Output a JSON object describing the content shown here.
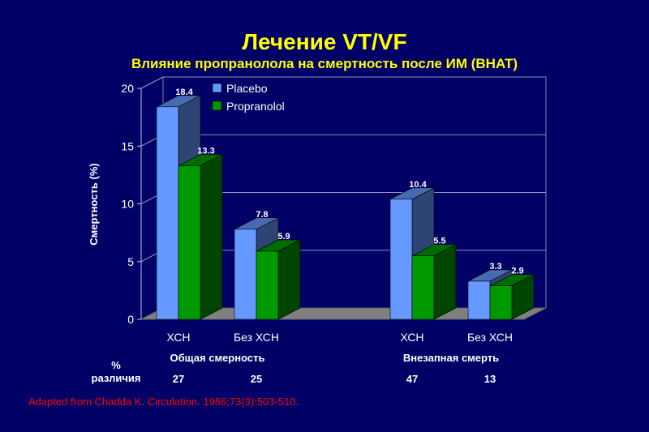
{
  "title": "Лечение  VT/VF",
  "subtitle": "Влияние пропранолола на смертность после ИМ  (BHAT)",
  "source": "Adapted from Chadda K.  Circulation.  1986;73(3):503-510.",
  "colors": {
    "placebo": "#6699ff",
    "propranolol": "#009900",
    "text": "#ffffff",
    "title": "#ffff00",
    "source": "#ff0000"
  },
  "chart_data": {
    "type": "bar",
    "ylabel": "Смертность (%)",
    "ylim": [
      0,
      20
    ],
    "yticks": [
      "0",
      "5",
      "10",
      "15",
      "20"
    ],
    "grid": true,
    "legend_position": "top-left",
    "categories": [
      "ХСН",
      "Без ХСН",
      "ХСН",
      "Без ХСН"
    ],
    "groups": [
      {
        "label": "Общая смерность",
        "categories": [
          0,
          1
        ]
      },
      {
        "label": "Внезапная смерть",
        "categories": [
          2,
          3
        ]
      }
    ],
    "series": [
      {
        "name": "Placebo",
        "values": [
          18.4,
          7.8,
          10.4,
          3.3
        ],
        "labels": [
          "18.4",
          "7.8",
          "10.4",
          "3.3"
        ]
      },
      {
        "name": "Propranolol",
        "values": [
          13.3,
          5.9,
          5.5,
          2.9
        ],
        "labels": [
          "13.3",
          "5.9",
          "5.5",
          "2.9"
        ]
      }
    ],
    "difference": {
      "label_line1": "%",
      "label_line2": "различия",
      "values": [
        "27",
        "25",
        "47",
        "13"
      ]
    }
  }
}
